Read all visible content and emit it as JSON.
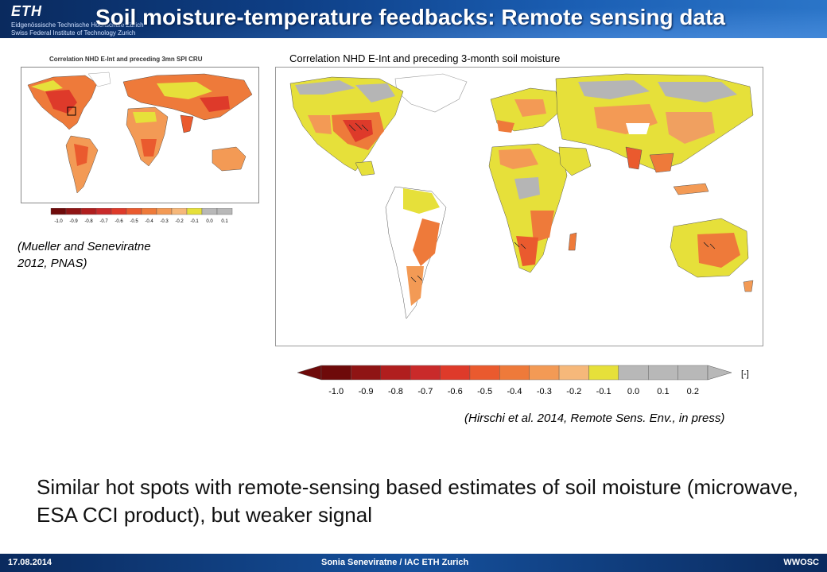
{
  "header": {
    "title": "Soil moisture-temperature feedbacks:  Remote sensing data",
    "logo": {
      "mark": "ETH",
      "line1": "Eidgenössische Technische Hochschule Zürich",
      "line2": "Swiss Federal Institute of Technology Zurich"
    }
  },
  "small_figure": {
    "caption": "Correlation NHD E-Int and preceding 3mn SPI CRU",
    "legend_ticks": [
      "-1.0",
      "-0.9",
      "-0.8",
      "-0.7",
      "-0.6",
      "-0.5",
      "-0.4",
      "-0.3",
      "-0.2",
      "-0.1",
      "0.0",
      "0.1"
    ],
    "citation_line1": "(Mueller and Seneviratne",
    "citation_line2": "2012, PNAS)"
  },
  "big_figure": {
    "caption": "Correlation NHD E-Int and preceding 3-month soil moisture",
    "legend_ticks": [
      "-1.0",
      "-0.9",
      "-0.8",
      "-0.7",
      "-0.6",
      "-0.5",
      "-0.4",
      "-0.3",
      "-0.2",
      "-0.1",
      "0.0",
      "0.1",
      "0.2"
    ],
    "legend_unit": "[-]",
    "citation": "(Hirschi et al. 2014, Remote Sens. Env., in press)"
  },
  "colors": {
    "scale": [
      "#6e0a0a",
      "#8f1414",
      "#b01e1e",
      "#c92a2a",
      "#de3a2a",
      "#ea5a2e",
      "#ee7a3a",
      "#f39a55",
      "#f6b87a",
      "#e6e03a",
      "#b8b8b8",
      "#b8b8b8",
      "#b8b8b8"
    ],
    "land_orange": "#f0a060",
    "land_yellow": "#e6e03a",
    "land_grey": "#b5b5b5",
    "land_red": "#e06030"
  },
  "body_text": "Similar hot spots with remote-sensing based estimates of soil moisture (microwave, ESA CCI product), but weaker signal",
  "footer": {
    "date": "17.08.2014",
    "author": "Sonia Seneviratne / IAC ETH Zurich",
    "org": "WWOSC"
  }
}
